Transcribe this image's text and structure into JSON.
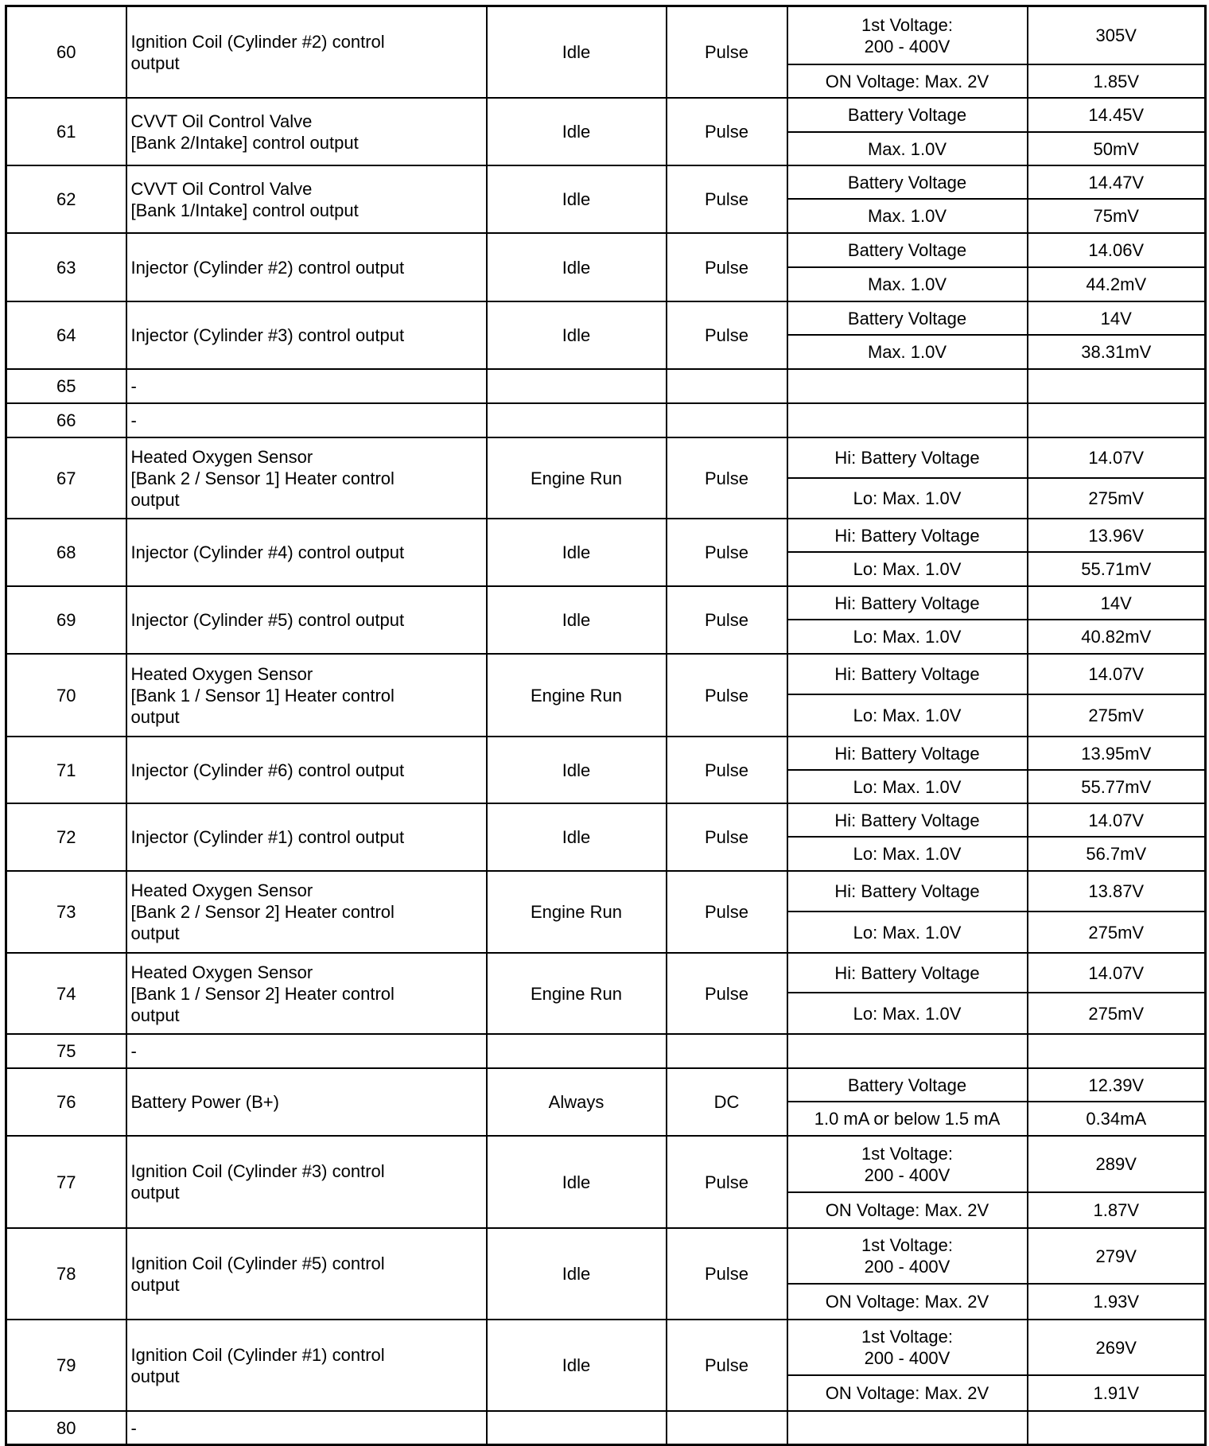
{
  "rows": [
    {
      "pin": "60",
      "desc": "Ignition Coil (Cylinder #2) control\noutput",
      "condition": "Idle",
      "type": "Pulse",
      "checks": [
        {
          "spec": "1st Voltage:\n200 - 400V",
          "value": "305V"
        },
        {
          "spec": "ON Voltage: Max. 2V",
          "value": "1.85V"
        }
      ]
    },
    {
      "pin": "61",
      "desc": "CVVT Oil Control Valve\n[Bank 2/Intake] control output",
      "condition": "Idle",
      "type": "Pulse",
      "checks": [
        {
          "spec": "Battery Voltage",
          "value": "14.45V"
        },
        {
          "spec": "Max. 1.0V",
          "value": "50mV"
        }
      ]
    },
    {
      "pin": "62",
      "desc": "CVVT Oil Control Valve\n[Bank 1/Intake] control output",
      "condition": "Idle",
      "type": "Pulse",
      "checks": [
        {
          "spec": "Battery Voltage",
          "value": "14.47V"
        },
        {
          "spec": "Max. 1.0V",
          "value": "75mV"
        }
      ]
    },
    {
      "pin": "63",
      "desc": "Injector (Cylinder #2) control output",
      "condition": "Idle",
      "type": "Pulse",
      "checks": [
        {
          "spec": "Battery Voltage",
          "value": "14.06V"
        },
        {
          "spec": "Max. 1.0V",
          "value": "44.2mV"
        }
      ]
    },
    {
      "pin": "64",
      "desc": "Injector (Cylinder #3) control output",
      "condition": "Idle",
      "type": "Pulse",
      "checks": [
        {
          "spec": "Battery Voltage",
          "value": "14V"
        },
        {
          "spec": "Max. 1.0V",
          "value": "38.31mV"
        }
      ]
    },
    {
      "pin": "65",
      "desc": "-",
      "condition": "",
      "type": "",
      "checks": [
        {
          "spec": "",
          "value": ""
        }
      ]
    },
    {
      "pin": "66",
      "desc": "-",
      "condition": "",
      "type": "",
      "checks": [
        {
          "spec": "",
          "value": ""
        }
      ]
    },
    {
      "pin": "67",
      "desc": "Heated Oxygen Sensor\n[Bank 2 / Sensor 1] Heater control\noutput",
      "condition": "Engine Run",
      "type": "Pulse",
      "checks": [
        {
          "spec": "Hi: Battery Voltage",
          "value": "14.07V"
        },
        {
          "spec": "Lo: Max. 1.0V",
          "value": "275mV"
        }
      ]
    },
    {
      "pin": "68",
      "desc": "Injector (Cylinder #4) control output",
      "condition": "Idle",
      "type": "Pulse",
      "checks": [
        {
          "spec": "Hi: Battery Voltage",
          "value": "13.96V"
        },
        {
          "spec": "Lo: Max. 1.0V",
          "value": "55.71mV"
        }
      ]
    },
    {
      "pin": "69",
      "desc": "Injector (Cylinder #5) control output",
      "condition": "Idle",
      "type": "Pulse",
      "checks": [
        {
          "spec": "Hi: Battery Voltage",
          "value": "14V"
        },
        {
          "spec": "Lo: Max. 1.0V",
          "value": "40.82mV"
        }
      ]
    },
    {
      "pin": "70",
      "desc": "Heated Oxygen Sensor\n[Bank 1 / Sensor 1] Heater control\noutput",
      "condition": "Engine Run",
      "type": "Pulse",
      "checks": [
        {
          "spec": "Hi: Battery Voltage",
          "value": "14.07V"
        },
        {
          "spec": "Lo: Max. 1.0V",
          "value": "275mV"
        }
      ]
    },
    {
      "pin": "71",
      "desc": "Injector (Cylinder #6) control output",
      "condition": "Idle",
      "type": "Pulse",
      "checks": [
        {
          "spec": "Hi: Battery Voltage",
          "value": "13.95mV"
        },
        {
          "spec": "Lo: Max. 1.0V",
          "value": "55.77mV"
        }
      ]
    },
    {
      "pin": "72",
      "desc": "Injector (Cylinder #1) control output",
      "condition": "Idle",
      "type": "Pulse",
      "checks": [
        {
          "spec": "Hi: Battery Voltage",
          "value": "14.07V"
        },
        {
          "spec": "Lo: Max. 1.0V",
          "value": "56.7mV"
        }
      ]
    },
    {
      "pin": "73",
      "desc": "Heated Oxygen Sensor\n[Bank 2 / Sensor 2] Heater control\noutput",
      "condition": "Engine Run",
      "type": "Pulse",
      "checks": [
        {
          "spec": "Hi: Battery Voltage",
          "value": "13.87V"
        },
        {
          "spec": "Lo: Max. 1.0V",
          "value": "275mV"
        }
      ]
    },
    {
      "pin": "74",
      "desc": "Heated Oxygen Sensor\n[Bank 1 / Sensor 2] Heater control\noutput",
      "condition": "Engine Run",
      "type": "Pulse",
      "checks": [
        {
          "spec": "Hi: Battery Voltage",
          "value": "14.07V"
        },
        {
          "spec": "Lo: Max. 1.0V",
          "value": "275mV"
        }
      ]
    },
    {
      "pin": "75",
      "desc": "-",
      "condition": "",
      "type": "",
      "checks": [
        {
          "spec": "",
          "value": ""
        }
      ]
    },
    {
      "pin": "76",
      "desc": "Battery Power (B+)",
      "condition": "Always",
      "type": "DC",
      "checks": [
        {
          "spec": "Battery Voltage",
          "value": "12.39V"
        },
        {
          "spec": "1.0 mA or below 1.5 mA",
          "value": "0.34mA"
        }
      ]
    },
    {
      "pin": "77",
      "desc": "Ignition Coil (Cylinder #3) control\noutput",
      "condition": "Idle",
      "type": "Pulse",
      "checks": [
        {
          "spec": "1st Voltage:\n200 - 400V",
          "value": "289V"
        },
        {
          "spec": "ON Voltage: Max. 2V",
          "value": "1.87V"
        }
      ]
    },
    {
      "pin": "78",
      "desc": "Ignition Coil (Cylinder #5) control\noutput",
      "condition": "Idle",
      "type": "Pulse",
      "checks": [
        {
          "spec": "1st Voltage:\n200 - 400V",
          "value": "279V"
        },
        {
          "spec": "ON Voltage: Max. 2V",
          "value": "1.93V"
        }
      ]
    },
    {
      "pin": "79",
      "desc": "Ignition Coil (Cylinder #1) control\noutput",
      "condition": "Idle",
      "type": "Pulse",
      "checks": [
        {
          "spec": "1st Voltage:\n200 - 400V",
          "value": "269V"
        },
        {
          "spec": "ON Voltage: Max. 2V",
          "value": "1.91V"
        }
      ]
    },
    {
      "pin": "80",
      "desc": "-",
      "condition": "",
      "type": "",
      "checks": [
        {
          "spec": "",
          "value": ""
        }
      ]
    }
  ]
}
